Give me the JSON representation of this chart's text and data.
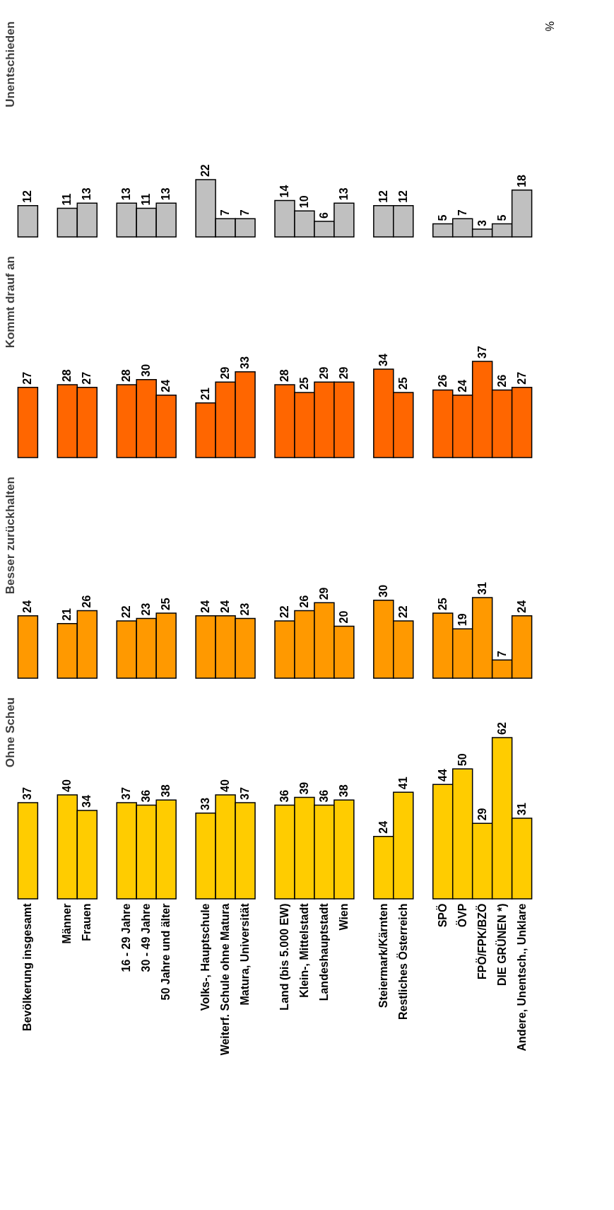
{
  "chart_data": [
    {
      "type": "bar",
      "title": "Unentschieden",
      "color": "#c0c0c0",
      "tick_labels": false,
      "data_labels": true,
      "annotations": [
        "%"
      ],
      "categories": [
        "Bevölkerung insgesamt",
        null,
        "Männer",
        "Frauen",
        null,
        "16 - 29 Jahre",
        "30 - 49 Jahre",
        "50 Jahre und älter",
        null,
        "Volks-, Hauptschule",
        "Weiterf. Schule ohne Matura",
        "Matura, Universität",
        null,
        "Land (bis 5.000 EW)",
        "Klein-, Mittelstadt",
        "Landeshauptstadt",
        "Wien",
        null,
        "Steiermark/Kärnten",
        "Restliches Österreich",
        null,
        "SPÖ",
        "ÖVP",
        "FPÖ/FPK/BZÖ",
        "DIE GRÜNEN *)",
        "Andere, Unentsch., Unklare"
      ],
      "values": [
        12,
        null,
        11,
        13,
        null,
        13,
        11,
        13,
        null,
        22,
        7,
        7,
        null,
        14,
        10,
        6,
        13,
        null,
        12,
        12,
        null,
        5,
        7,
        3,
        5,
        18
      ]
    },
    {
      "type": "bar",
      "title": "Kommt drauf an",
      "color": "#ff6600",
      "tick_labels": false,
      "data_labels": true,
      "categories": [
        "Bevölkerung insgesamt",
        null,
        "Männer",
        "Frauen",
        null,
        "16 - 29 Jahre",
        "30 - 49 Jahre",
        "50 Jahre und älter",
        null,
        "Volks-, Hauptschule",
        "Weiterf. Schule ohne Matura",
        "Matura, Universität",
        null,
        "Land (bis 5.000 EW)",
        "Klein-, Mittelstadt",
        "Landeshauptstadt",
        "Wien",
        null,
        "Steiermark/Kärnten",
        "Restliches Österreich",
        null,
        "SPÖ",
        "ÖVP",
        "FPÖ/FPK/BZÖ",
        "DIE GRÜNEN *)",
        "Andere, Unentsch., Unklare"
      ],
      "values": [
        27,
        null,
        28,
        27,
        null,
        28,
        30,
        24,
        null,
        21,
        29,
        33,
        null,
        28,
        25,
        29,
        29,
        null,
        34,
        25,
        null,
        26,
        24,
        37,
        26,
        27
      ]
    },
    {
      "type": "bar",
      "title": "Besser zurückhalten",
      "color": "#ff9900",
      "tick_labels": false,
      "data_labels": true,
      "categories": [
        "Bevölkerung insgesamt",
        null,
        "Männer",
        "Frauen",
        null,
        "16 - 29 Jahre",
        "30 - 49 Jahre",
        "50 Jahre und älter",
        null,
        "Volks-, Hauptschule",
        "Weiterf. Schule ohne Matura",
        "Matura, Universität",
        null,
        "Land (bis 5.000 EW)",
        "Klein-, Mittelstadt",
        "Landeshauptstadt",
        "Wien",
        null,
        "Steiermark/Kärnten",
        "Restliches Österreich",
        null,
        "SPÖ",
        "ÖVP",
        "FPÖ/FPK/BZÖ",
        "DIE GRÜNEN *)",
        "Andere, Unentsch., Unklare"
      ],
      "values": [
        24,
        null,
        21,
        26,
        null,
        22,
        23,
        25,
        null,
        24,
        24,
        23,
        null,
        22,
        26,
        29,
        20,
        null,
        30,
        22,
        null,
        25,
        19,
        31,
        7,
        24
      ]
    },
    {
      "type": "bar",
      "title": "Ohne Scheu",
      "color": "#ffcc00",
      "tick_labels": "x",
      "data_labels": true,
      "categories": [
        "Bevölkerung insgesamt",
        null,
        "Männer",
        "Frauen",
        null,
        "16 - 29 Jahre",
        "30 - 49 Jahre",
        "50 Jahre und älter",
        null,
        "Volks-, Hauptschule",
        "Weiterf. Schule ohne Matura",
        "Matura, Universität",
        null,
        "Land (bis 5.000 EW)",
        "Klein-, Mittelstadt",
        "Landeshauptstadt",
        "Wien",
        null,
        "Steiermark/Kärnten",
        "Restliches Österreich",
        null,
        "SPÖ",
        "ÖVP",
        "FPÖ/FPK/BZÖ",
        "DIE GRÜNEN *)",
        "Andere, Unentsch., Unklare"
      ],
      "values": [
        37,
        null,
        40,
        34,
        null,
        37,
        36,
        38,
        null,
        33,
        40,
        37,
        null,
        36,
        39,
        36,
        38,
        null,
        24,
        41,
        null,
        44,
        50,
        29,
        62,
        31
      ]
    }
  ]
}
